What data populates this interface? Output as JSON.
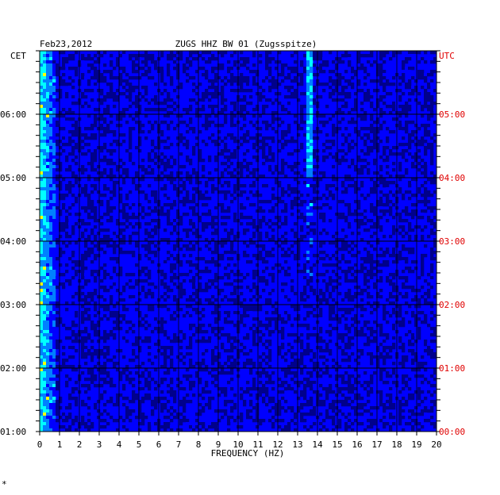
{
  "header": {
    "date": "Feb23,2012",
    "station": "ZUGS HHZ BW 01 (Zugsspitze)",
    "left_zone": "CET",
    "right_zone": "UTC",
    "colors": {
      "left_axis": "#000000",
      "right_axis": "#e00000"
    }
  },
  "corner_mark": "*",
  "chart_data": {
    "type": "heatmap",
    "xlabel": "FREQUENCY (HZ)",
    "xlim": [
      0,
      20
    ],
    "x_ticks": [
      "0",
      "1",
      "2",
      "3",
      "4",
      "5",
      "6",
      "7",
      "8",
      "9",
      "10",
      "11",
      "12",
      "13",
      "14",
      "15",
      "16",
      "17",
      "18",
      "19",
      "20"
    ],
    "ylim_cet": [
      "01:00",
      "07:00"
    ],
    "y_ticks_cet": [
      "01:00",
      "02:00",
      "03:00",
      "04:00",
      "05:00",
      "06:00"
    ],
    "y_ticks_utc": [
      "00:00",
      "01:00",
      "02:00",
      "03:00",
      "04:00",
      "05:00"
    ],
    "grid": true,
    "colormap": [
      "#00008b",
      "#0000ff",
      "#0080ff",
      "#00ffff",
      "#ffff00",
      "#ff0000"
    ],
    "features": [
      {
        "description": "strong low-frequency energy",
        "freq_range_hz": [
          0,
          0.8
        ]
      },
      {
        "description": "narrow spectral line",
        "freq_hz": 13.6,
        "strongest_cet": [
          "06:00",
          "07:00"
        ]
      }
    ]
  }
}
